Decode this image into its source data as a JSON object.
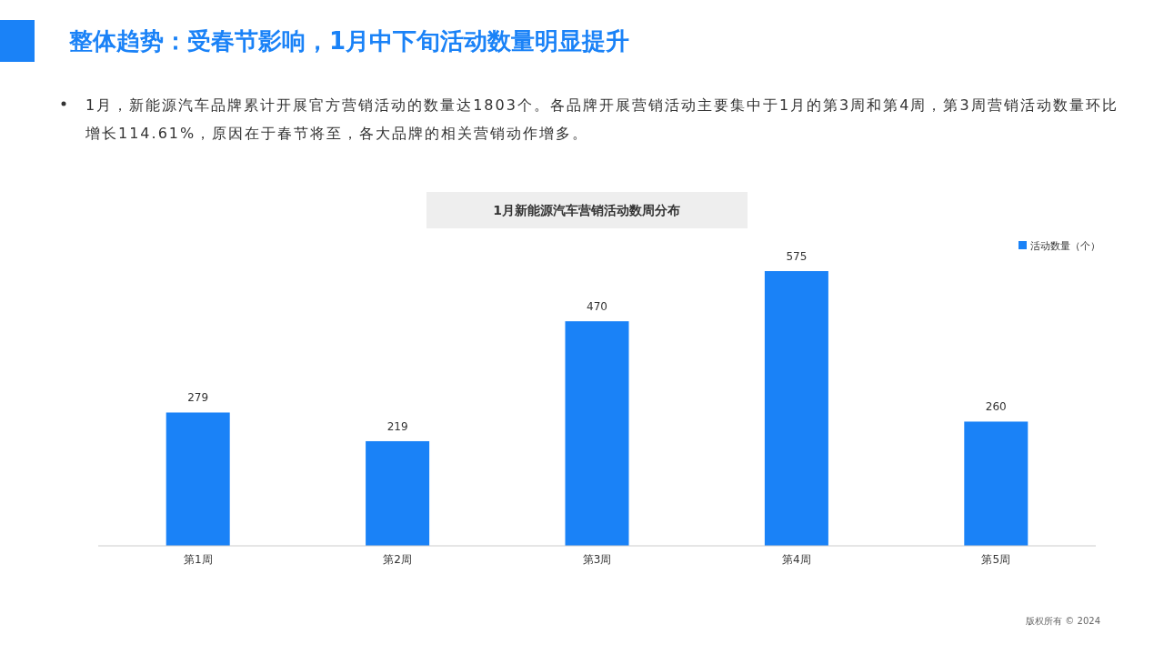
{
  "chart_data": {
    "type": "bar",
    "title": "1月新能源汽车营销活动数周分布",
    "subtitle": "1月，新能源汽车品牌累计开展官方营销活动的数量达1803个。各品牌开展营销活动主要集中于1月的第3周和第4周，第3周营销活动数量环比增长114.61%，原因在于春节将至，各大品牌的相关营销动作增多。",
    "annotations": [
      "整体趋势：受春节影响，1月中下旬活动数量明显提升",
      "版权所有 © 2024"
    ],
    "categories": [
      "第1周",
      "第2周",
      "第3周",
      "第4周",
      "第5周"
    ],
    "series": [
      {
        "name": "活动数量（个）",
        "color": "#1a82f7",
        "values": [
          279,
          219,
          470,
          575,
          260
        ]
      }
    ],
    "data_labels": true,
    "legend": "top right"
  }
}
